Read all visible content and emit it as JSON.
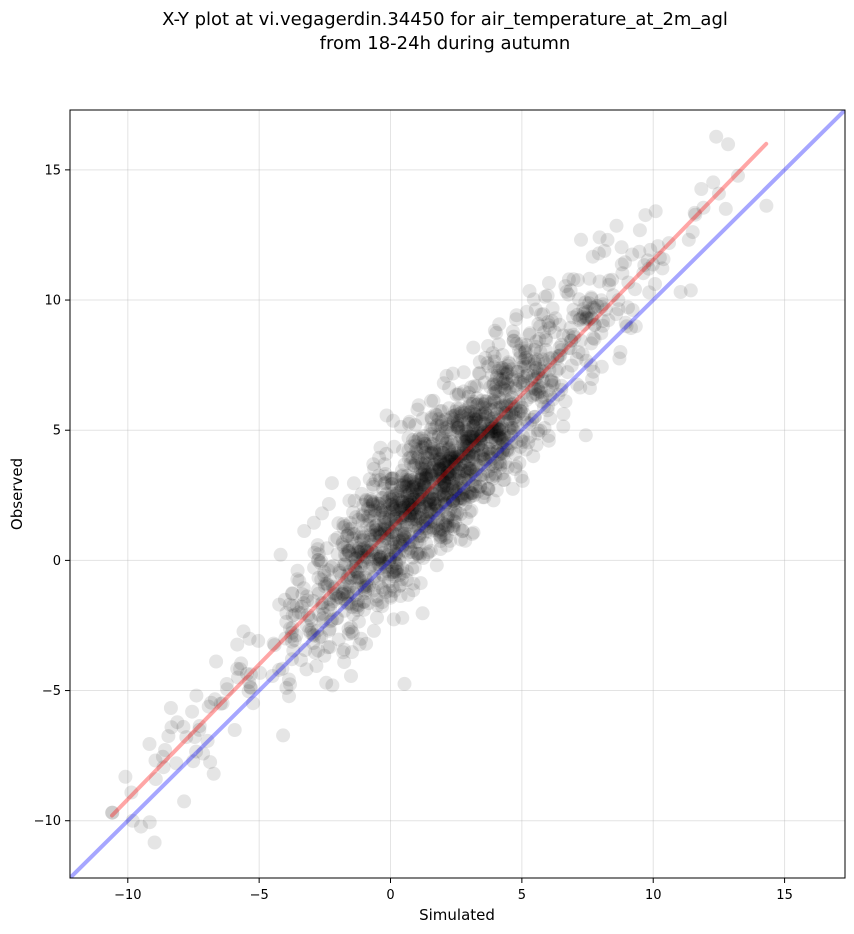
{
  "chart_data": {
    "type": "scatter",
    "title": [
      "X-Y plot at vi.vegagerdin.34450 for air_temperature_at_2m_agl",
      "from 18-24h during autumn"
    ],
    "xlabel": "Simulated",
    "ylabel": "Observed",
    "xlim": [
      -12.2,
      17.3
    ],
    "ylim": [
      -12.2,
      17.3
    ],
    "xticks": [
      -10,
      -5,
      0,
      5,
      10,
      15
    ],
    "yticks": [
      -10,
      -5,
      0,
      5,
      10,
      15
    ],
    "xtick_labels": [
      "−10",
      "−5",
      "0",
      "5",
      "10",
      "15"
    ],
    "ytick_labels": [
      "−10",
      "−5",
      "0",
      "5",
      "10",
      "15"
    ],
    "grid": true,
    "point_color": "#000000",
    "point_alpha": 0.1,
    "n_points_estimated": 1800,
    "density_description": "Dense cloud along the diagonal, densest near x≈1.5, y≈2.8; spread about ±2.5 around fit line",
    "lines": [
      {
        "role": "one-to-one",
        "color": "#0000ff",
        "alpha": 0.35,
        "x": [
          -12.2,
          17.3
        ],
        "y": [
          -12.2,
          17.3
        ]
      },
      {
        "role": "regression",
        "color": "#ff0000",
        "alpha": 0.35,
        "x": [
          -10.6,
          14.3
        ],
        "y": [
          -9.8,
          16.0
        ]
      }
    ]
  }
}
